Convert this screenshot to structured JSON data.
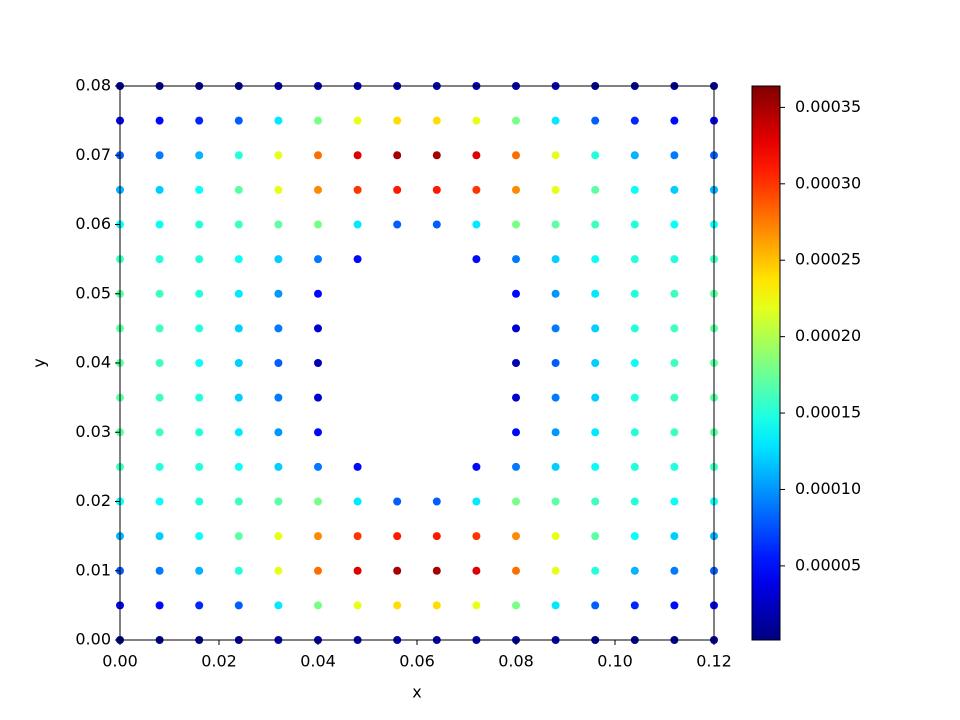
{
  "chart_data": {
    "type": "scatter",
    "cmap": "jet",
    "xlabel": "x",
    "ylabel": "y",
    "xlim": [
      0,
      0.12
    ],
    "ylim": [
      0,
      0.08
    ],
    "clim": [
      1.5e-06,
      0.000364
    ],
    "xticks": [
      {
        "value": 0,
        "label": "0.00"
      },
      0.02,
      0.04,
      0.06,
      0.08,
      {
        "value": 0.1,
        "label": "0.10"
      },
      0.12
    ],
    "yticks": [
      {
        "value": 0,
        "label": "0.00"
      },
      0.01,
      0.02,
      0.03,
      0.04,
      0.05,
      0.06,
      0.07,
      0.08
    ],
    "cticks": [
      {
        "value": 5e-05,
        "label": "0.00005"
      },
      {
        "value": 0.0001,
        "label": "0.00010"
      },
      {
        "value": 0.00015,
        "label": "0.00015"
      },
      {
        "value": 0.0002,
        "label": "0.00020"
      },
      {
        "value": 0.00025,
        "label": "0.00025"
      },
      {
        "value": 0.0003,
        "label": "0.00030"
      },
      {
        "value": 0.00035,
        "label": "0.00035"
      }
    ],
    "x": [
      0,
      0.008,
      0.016,
      0.024,
      0.032,
      0.04,
      0.048,
      0.056,
      0.064,
      0.072,
      0.08,
      0.088,
      0.096,
      0.104,
      0.112,
      0.12
    ],
    "y": [
      0,
      0.005,
      0.01,
      0.015,
      0.02,
      0.025,
      0.03,
      0.035,
      0.04,
      0.045,
      0.05,
      0.055,
      0.06,
      0.065,
      0.07,
      0.075,
      0.08
    ],
    "values": [
      [
        1e-05,
        1e-05,
        1e-05,
        1e-05,
        2e-05,
        2e-05,
        2e-05,
        2e-05,
        2e-05,
        2e-05,
        2e-05,
        2e-05,
        1e-05,
        1e-05,
        1e-05,
        1e-05
      ],
      [
        4e-05,
        5e-05,
        6e-05,
        8e-05,
        0.00013,
        0.00018,
        0.00022,
        0.00024,
        0.00024,
        0.00022,
        0.00018,
        0.00013,
        8e-05,
        6e-05,
        5e-05,
        4e-05
      ],
      [
        8e-05,
        9e-05,
        0.00011,
        0.00015,
        0.00022,
        0.00028,
        0.00033,
        0.00035,
        0.00035,
        0.00033,
        0.00028,
        0.00022,
        0.00015,
        0.00011,
        9e-05,
        8e-05
      ],
      [
        0.00011,
        0.00012,
        0.00014,
        0.00017,
        0.00022,
        0.00027,
        0.0003,
        0.00031,
        0.00031,
        0.0003,
        0.00027,
        0.00022,
        0.00017,
        0.00014,
        0.00012,
        0.00011
      ],
      [
        0.00014,
        0.00014,
        0.00015,
        0.00016,
        0.00017,
        0.00018,
        0.00013,
        8e-05,
        8e-05,
        0.00013,
        0.00018,
        0.00017,
        0.00016,
        0.00015,
        0.00014,
        0.00014
      ],
      [
        0.00016,
        0.00015,
        0.00015,
        0.00014,
        0.00012,
        9e-05,
        5e-05,
        null,
        null,
        5e-05,
        9e-05,
        0.00012,
        0.00014,
        0.00015,
        0.00015,
        0.00016
      ],
      [
        0.00017,
        0.00016,
        0.00015,
        0.00013,
        0.0001,
        5e-05,
        null,
        null,
        null,
        null,
        5e-05,
        0.0001,
        0.00013,
        0.00015,
        0.00016,
        0.00017
      ],
      [
        0.00017,
        0.00016,
        0.00015,
        0.00012,
        9e-05,
        3e-05,
        null,
        null,
        null,
        null,
        3e-05,
        9e-05,
        0.00012,
        0.00015,
        0.00016,
        0.00017
      ],
      [
        0.00017,
        0.00016,
        0.00014,
        0.00012,
        8e-05,
        2e-05,
        null,
        null,
        null,
        null,
        2e-05,
        8e-05,
        0.00012,
        0.00014,
        0.00016,
        0.00017
      ],
      [
        0.00017,
        0.00016,
        0.00015,
        0.00012,
        9e-05,
        3e-05,
        null,
        null,
        null,
        null,
        3e-05,
        9e-05,
        0.00012,
        0.00015,
        0.00016,
        0.00017
      ],
      [
        0.00017,
        0.00016,
        0.00015,
        0.00013,
        0.0001,
        5e-05,
        null,
        null,
        null,
        null,
        5e-05,
        0.0001,
        0.00013,
        0.00015,
        0.00016,
        0.00017
      ],
      [
        0.00016,
        0.00015,
        0.00015,
        0.00014,
        0.00012,
        9e-05,
        5e-05,
        null,
        null,
        5e-05,
        9e-05,
        0.00012,
        0.00014,
        0.00015,
        0.00015,
        0.00016
      ],
      [
        0.00014,
        0.00014,
        0.00015,
        0.00016,
        0.00017,
        0.00018,
        0.00013,
        8e-05,
        8e-05,
        0.00013,
        0.00018,
        0.00017,
        0.00016,
        0.00015,
        0.00014,
        0.00014
      ],
      [
        0.00011,
        0.00012,
        0.00014,
        0.00017,
        0.00022,
        0.00027,
        0.0003,
        0.00031,
        0.00031,
        0.0003,
        0.00027,
        0.00022,
        0.00017,
        0.00014,
        0.00012,
        0.00011
      ],
      [
        8e-05,
        9e-05,
        0.00011,
        0.00015,
        0.00022,
        0.00028,
        0.00033,
        0.00035,
        0.00035,
        0.00033,
        0.00028,
        0.00022,
        0.00015,
        0.00011,
        9e-05,
        8e-05
      ],
      [
        4e-05,
        5e-05,
        6e-05,
        8e-05,
        0.00013,
        0.00018,
        0.00022,
        0.00024,
        0.00024,
        0.00022,
        0.00018,
        0.00013,
        8e-05,
        6e-05,
        5e-05,
        4e-05
      ],
      [
        1e-05,
        1e-05,
        1e-05,
        1e-05,
        2e-05,
        2e-05,
        2e-05,
        2e-05,
        2e-05,
        2e-05,
        2e-05,
        2e-05,
        1e-05,
        1e-05,
        1e-05,
        1e-05
      ]
    ]
  }
}
